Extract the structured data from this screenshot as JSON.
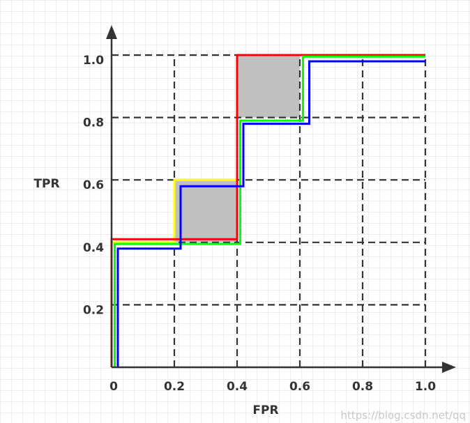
{
  "chart_data": {
    "type": "line",
    "xlabel": "FPR",
    "ylabel": "TPR",
    "xlim": [
      0,
      1.0
    ],
    "ylim": [
      0,
      1.0
    ],
    "x_ticks": [
      "0",
      "0.2",
      "0.4",
      "0.6",
      "0.8",
      "1.0"
    ],
    "y_ticks": [
      "0.2",
      "0.4",
      "0.6",
      "0.8",
      "1.0"
    ],
    "x_tick_values": [
      0,
      0.2,
      0.4,
      0.6,
      0.8,
      1.0
    ],
    "y_tick_values": [
      0.2,
      0.4,
      0.6,
      0.8,
      1.0
    ],
    "grid": "dashed",
    "shaded_regions": [
      {
        "x": [
          0.2,
          0.4
        ],
        "y": [
          0.4,
          0.6
        ],
        "color": "#c0c0c0"
      },
      {
        "x": [
          0.4,
          0.6
        ],
        "y": [
          0.8,
          1.0
        ],
        "color": "#c0c0c0"
      }
    ],
    "series": [
      {
        "color": "#ffff00",
        "x": [
          0,
          0,
          0.2,
          0.2,
          0.4,
          0.4,
          1.0
        ],
        "y": [
          0,
          0.4,
          0.4,
          0.6,
          0.6,
          1.0,
          1.0
        ]
      },
      {
        "color": "#ff0000",
        "x": [
          0,
          0,
          0.4,
          0.4,
          1.0
        ],
        "y": [
          0,
          0.41,
          0.41,
          1.0,
          1.0
        ]
      },
      {
        "color": "#00ff00",
        "x": [
          0.01,
          0.01,
          0.41,
          0.41,
          0.61,
          0.61,
          1.0
        ],
        "y": [
          0,
          0.395,
          0.395,
          0.79,
          0.79,
          0.995,
          0.995
        ]
      },
      {
        "color": "#0000ff",
        "x": [
          0.02,
          0.02,
          0.22,
          0.22,
          0.42,
          0.42,
          0.63,
          0.63,
          1.0
        ],
        "y": [
          0,
          0.38,
          0.38,
          0.58,
          0.58,
          0.78,
          0.78,
          0.98,
          0.98
        ]
      }
    ]
  },
  "watermark": "https://blog.csdn.net/qq"
}
